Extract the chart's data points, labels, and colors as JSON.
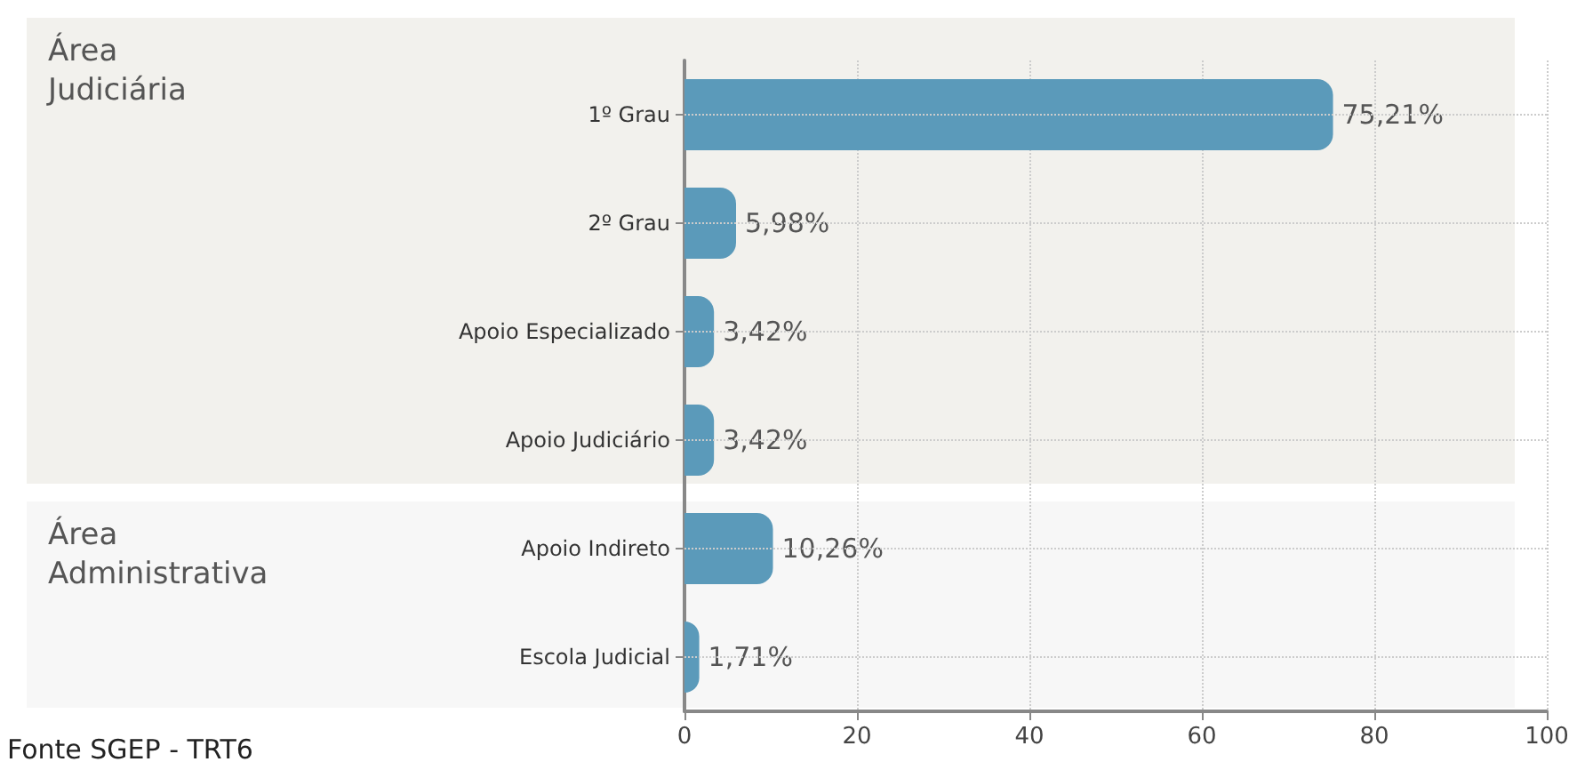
{
  "chart_data": {
    "type": "bar",
    "orientation": "horizontal",
    "categories": [
      "1º Grau",
      "2º Grau",
      "Apoio Especializado",
      "Apoio Judiciário",
      "Apoio Indireto",
      "Escola Judicial"
    ],
    "values": [
      75.21,
      5.98,
      3.42,
      3.42,
      10.26,
      1.71
    ],
    "value_labels": [
      "75,21%",
      "5,98%",
      "3,42%",
      "3,42%",
      "10,26%",
      "1,71%"
    ],
    "color": "#5b9aba",
    "xlim": [
      0,
      100
    ],
    "xticks": [
      0,
      20,
      40,
      60,
      80,
      100
    ],
    "grid": true,
    "bands": [
      {
        "axis": "y",
        "from": "1º Grau",
        "to": "Apoio Judiciário",
        "label": "Área\nJudiciária",
        "color": "#f2f1ed"
      },
      {
        "axis": "y",
        "from": "Apoio Indireto",
        "to": "Escola Judicial",
        "label": "Área\nAdministrativa",
        "color": "#f7f7f7"
      }
    ],
    "annotations": [
      "Fonte SGEP - TRT6"
    ]
  }
}
